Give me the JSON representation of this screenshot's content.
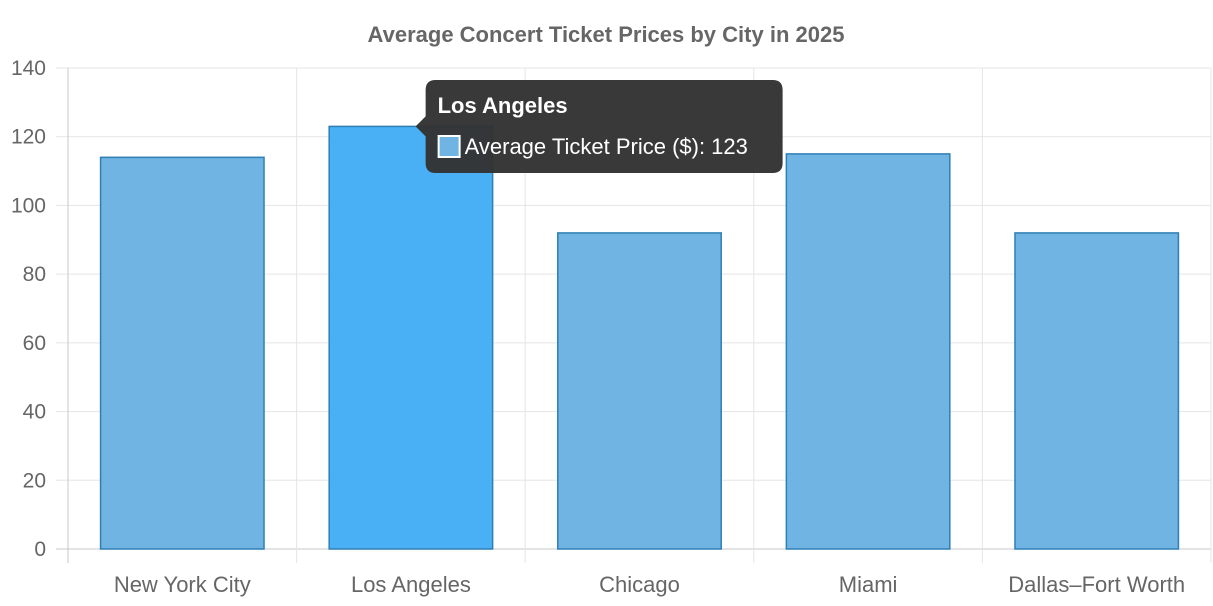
{
  "chart_data": {
    "type": "bar",
    "title": "Average Concert Ticket Prices by City in 2025",
    "categories": [
      "New York City",
      "Los Angeles",
      "Chicago",
      "Miami",
      "Dallas–Fort Worth"
    ],
    "series": [
      {
        "name": "Average Ticket Price ($)",
        "values": [
          114,
          123,
          92,
          115,
          92
        ]
      }
    ],
    "ylim": [
      0,
      140
    ],
    "yticks": [
      0,
      20,
      40,
      60,
      80,
      100,
      120,
      140
    ],
    "grid": true,
    "colors": {
      "bar": "#6fb4e3",
      "bar_highlight": "#4ab0f5",
      "bar_border": "#2f7fb5"
    },
    "tooltip": {
      "category": "Los Angeles",
      "title": "Los Angeles",
      "label": "Average Ticket Price ($): 123"
    }
  }
}
